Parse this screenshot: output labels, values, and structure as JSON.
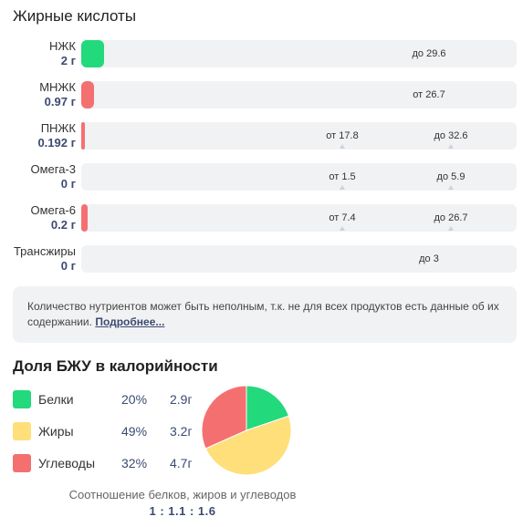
{
  "fatty_acids": {
    "title": "Жирные кислоты",
    "rows": [
      {
        "name": "НЖК",
        "value": "2 г",
        "color": "#22d97b",
        "fill_fraction": 0.053,
        "marks": [
          {
            "text": "до 29.6",
            "tick": false
          }
        ]
      },
      {
        "name": "МНЖК",
        "value": "0.97 г",
        "color": "#f47070",
        "fill_fraction": 0.029,
        "marks": [
          {
            "text": "от 26.7",
            "tick": false
          }
        ]
      },
      {
        "name": "ПНЖК",
        "value": "0.192 г",
        "color": "#f47070",
        "fill_fraction": 0.006,
        "marks": [
          {
            "text": "от 17.8",
            "tick": true
          },
          {
            "text": "до 32.6",
            "tick": true
          }
        ]
      },
      {
        "name": "Омега-3",
        "value": "0 г",
        "color": "#f47070",
        "fill_fraction": 0.0,
        "marks": [
          {
            "text": "от 1.5",
            "tick": true
          },
          {
            "text": "до 5.9",
            "tick": true
          }
        ]
      },
      {
        "name": "Омега-6",
        "value": "0.2 г",
        "color": "#f47070",
        "fill_fraction": 0.015,
        "marks": [
          {
            "text": "от 7.4",
            "tick": true
          },
          {
            "text": "до 26.7",
            "tick": true
          }
        ]
      },
      {
        "name": "Трансжиры",
        "value": "0 г",
        "color": "#f47070",
        "fill_fraction": 0.0,
        "marks": [
          {
            "text": "до 3",
            "tick": false
          }
        ]
      }
    ]
  },
  "notice": {
    "text": "Количество нутриентов может быть неполным, т.к. не для всех продуктов есть данные об их содержании.",
    "link": "Подробнее..."
  },
  "bju": {
    "title": "Доля БЖУ в калорийности",
    "items": [
      {
        "name": "Белки",
        "percent": "20%",
        "grams": "2.9г",
        "color": "#22d97b"
      },
      {
        "name": "Жиры",
        "percent": "49%",
        "grams": "3.2г",
        "color": "#ffdf7a"
      },
      {
        "name": "Углеводы",
        "percent": "32%",
        "grams": "4.7г",
        "color": "#f47070"
      }
    ],
    "ratio_label": "Соотношение белков, жиров и углеводов",
    "ratio_value": "1 : 1.1 : 1.6"
  },
  "chart_data": {
    "type": "pie",
    "categories": [
      "Белки",
      "Жиры",
      "Углеводы"
    ],
    "values": [
      20,
      49,
      32
    ],
    "colors": [
      "#22d97b",
      "#ffdf7a",
      "#f47070"
    ]
  }
}
